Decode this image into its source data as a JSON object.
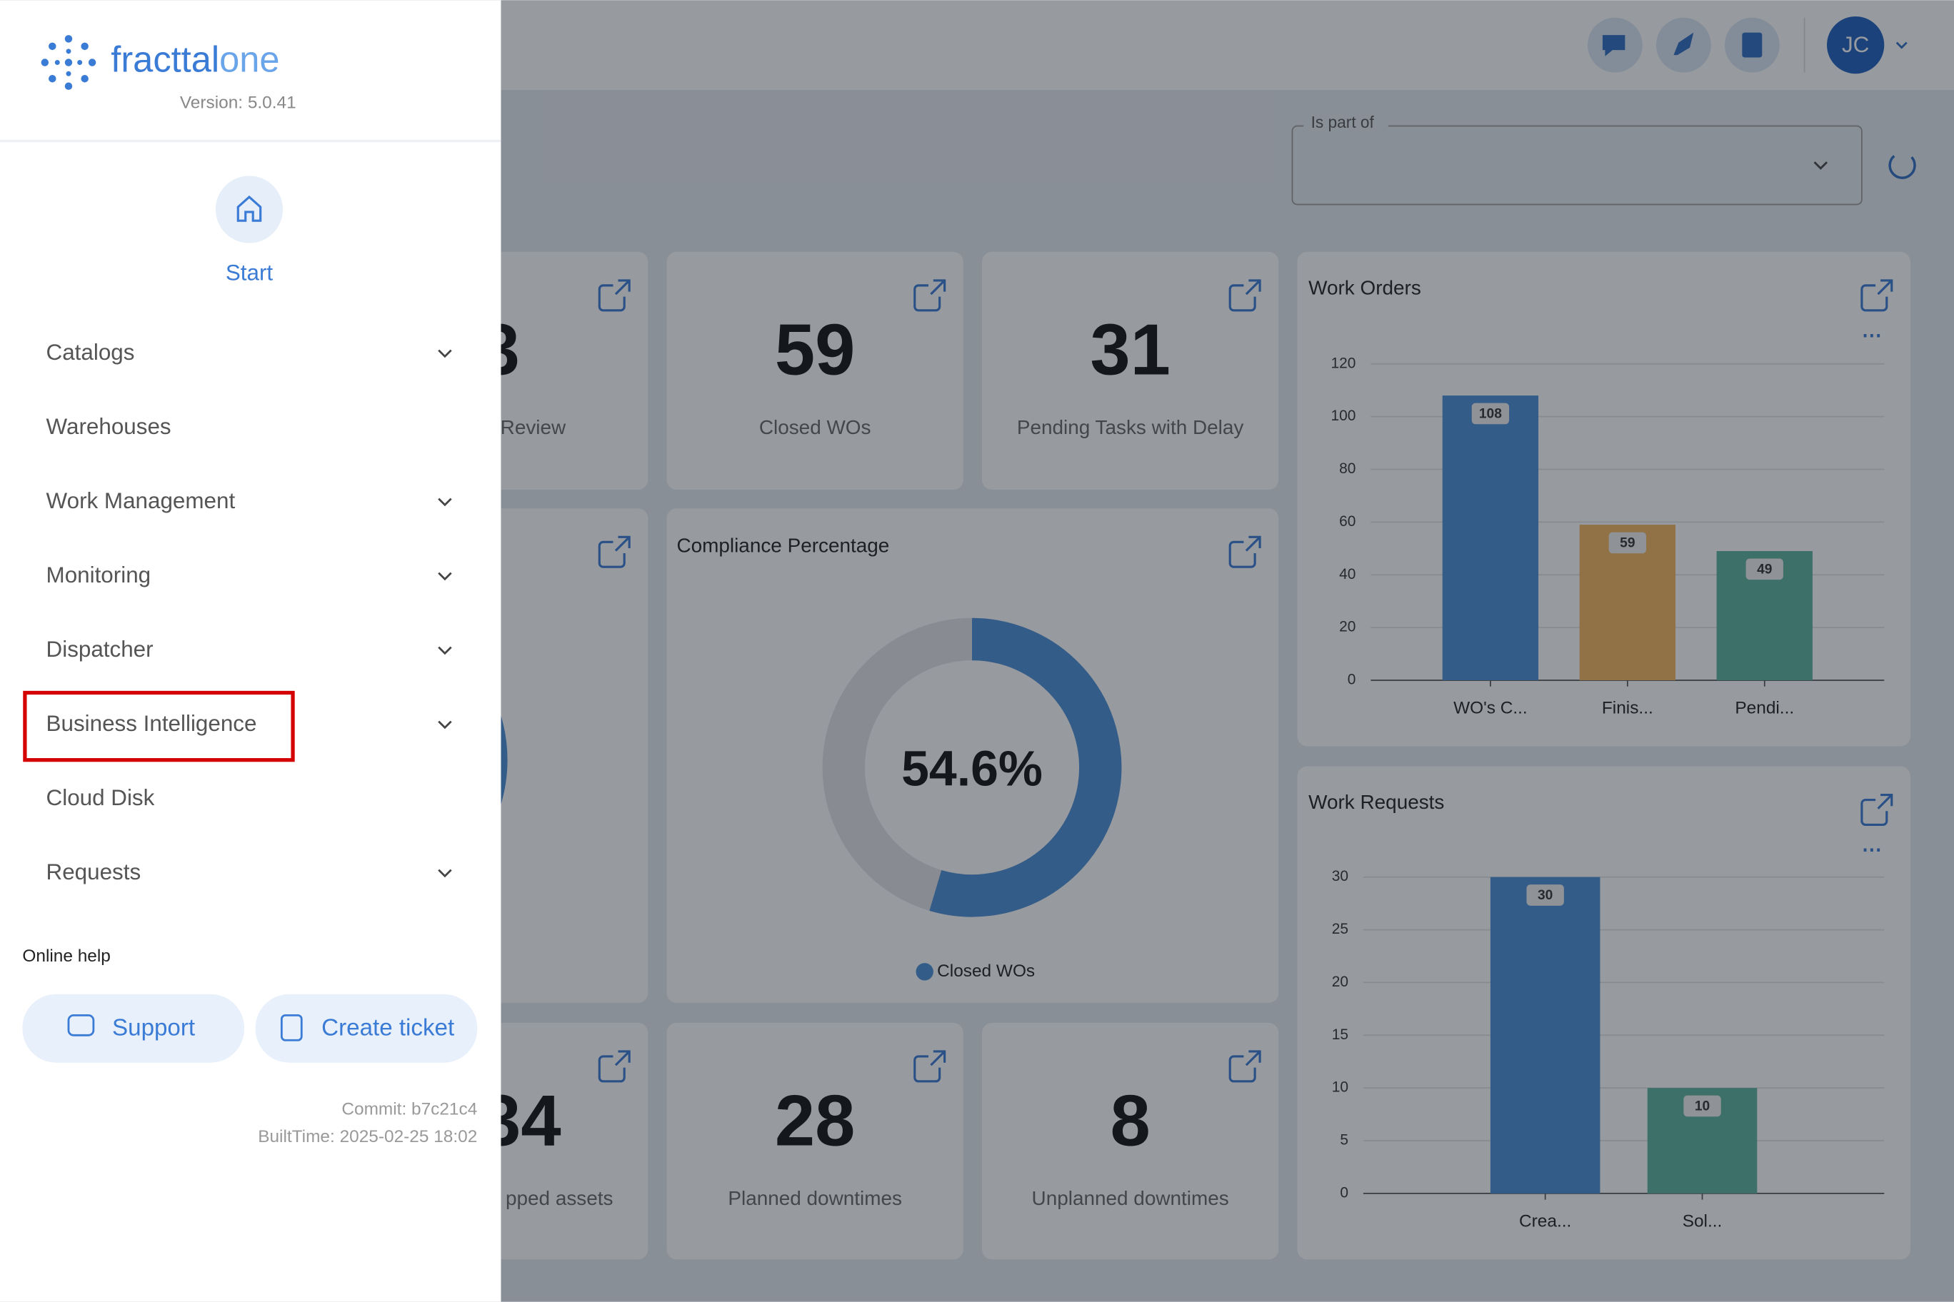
{
  "sidebar": {
    "brand_a": "fracttal",
    "brand_b": "one",
    "version": "Version: 5.0.41",
    "start": "Start",
    "menu": [
      {
        "label": "Catalogs",
        "expandable": true
      },
      {
        "label": "Warehouses",
        "expandable": false
      },
      {
        "label": "Work Management",
        "expandable": true
      },
      {
        "label": "Monitoring",
        "expandable": true
      },
      {
        "label": "Dispatcher",
        "expandable": true
      },
      {
        "label": "Business Intelligence",
        "expandable": true,
        "highlighted": true
      },
      {
        "label": "Cloud Disk",
        "expandable": false
      },
      {
        "label": "Requests",
        "expandable": true
      }
    ],
    "online_help": "Online help",
    "support": "Support",
    "create_ticket": "Create ticket",
    "commit": "Commit: b7c21c4",
    "built_time": "BuiltTime: 2025-02-25 18:02"
  },
  "header": {
    "avatar": "JC",
    "filter_label": "Is part of"
  },
  "kpis": [
    {
      "value": 3,
      "label": "Review"
    },
    {
      "value": 59,
      "label": "Closed WOs"
    },
    {
      "value": 31,
      "label": "Pending Tasks with Delay"
    },
    {
      "value": 34,
      "label": "pped assets"
    },
    {
      "value": 28,
      "label": "Planned downtimes"
    },
    {
      "value": 8,
      "label": "Unplanned downtimes"
    }
  ],
  "compliance": {
    "title": "Compliance Percentage",
    "value": 54.6,
    "value_label": "54.6%",
    "legend": "Closed WOs",
    "color": "#4a8fd9"
  },
  "work_orders": {
    "type": "bar",
    "title": "Work Orders",
    "categories": [
      "WO's C...",
      "Finis...",
      "Pendi..."
    ],
    "values": [
      108,
      59,
      49
    ],
    "colors": [
      "#4a8fd9",
      "#f3b660",
      "#5db3a0"
    ],
    "ylim": [
      0,
      120
    ],
    "yticks": [
      0,
      20,
      40,
      60,
      80,
      100,
      120
    ],
    "grid": true
  },
  "work_requests": {
    "type": "bar",
    "title": "Work Requests",
    "categories": [
      "Crea...",
      "Sol..."
    ],
    "values": [
      30,
      10
    ],
    "colors": [
      "#4a8fd9",
      "#5db3a0"
    ],
    "ylim": [
      0,
      30
    ],
    "yticks": [
      0,
      5,
      10,
      15,
      20,
      25,
      30
    ],
    "grid": true
  }
}
